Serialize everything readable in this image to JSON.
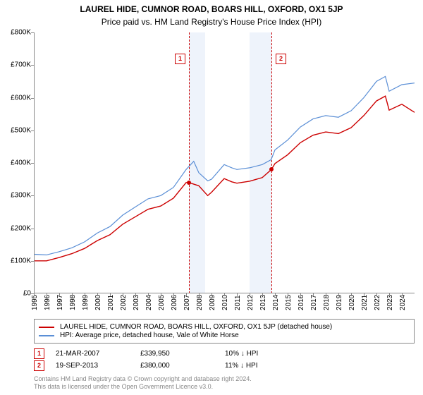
{
  "chart": {
    "type": "line",
    "title": "LAUREL HIDE, CUMNOR ROAD, BOARS HILL, OXFORD, OX1 5JP",
    "subtitle": "Price paid vs. HM Land Registry's House Price Index (HPI)",
    "background_color": "#ffffff",
    "band_color": "#eef3fb",
    "axis_color": "#888888",
    "tick_fontsize": 10,
    "title_fontsize": 12,
    "x": {
      "min": 1995,
      "max": 2025,
      "ticks": [
        1995,
        1996,
        1997,
        1998,
        1999,
        2000,
        2001,
        2002,
        2003,
        2004,
        2005,
        2006,
        2007,
        2008,
        2009,
        2010,
        2011,
        2012,
        2013,
        2014,
        2015,
        2016,
        2017,
        2018,
        2019,
        2020,
        2021,
        2022,
        2023,
        2024
      ]
    },
    "y": {
      "min": 0,
      "max": 800000,
      "ticks": [
        0,
        100000,
        200000,
        300000,
        400000,
        500000,
        600000,
        700000,
        800000
      ],
      "tick_labels": [
        "£0",
        "£100K",
        "£200K",
        "£300K",
        "£400K",
        "£500K",
        "£600K",
        "£700K",
        "£800K"
      ]
    },
    "series": [
      {
        "id": "hpi",
        "label": "HPI: Average price, detached house, Vale of White Horse",
        "color": "#5b8fd6",
        "width": 1.2,
        "points": [
          [
            1995,
            120000
          ],
          [
            1996,
            118000
          ],
          [
            1997,
            128000
          ],
          [
            1998,
            140000
          ],
          [
            1999,
            158000
          ],
          [
            2000,
            185000
          ],
          [
            2001,
            205000
          ],
          [
            2002,
            240000
          ],
          [
            2003,
            265000
          ],
          [
            2004,
            290000
          ],
          [
            2005,
            300000
          ],
          [
            2006,
            325000
          ],
          [
            2007,
            380000
          ],
          [
            2007.6,
            405000
          ],
          [
            2008,
            370000
          ],
          [
            2008.7,
            345000
          ],
          [
            2009,
            350000
          ],
          [
            2010,
            395000
          ],
          [
            2010.6,
            385000
          ],
          [
            2011,
            380000
          ],
          [
            2012,
            385000
          ],
          [
            2013,
            395000
          ],
          [
            2013.7,
            410000
          ],
          [
            2014,
            440000
          ],
          [
            2015,
            470000
          ],
          [
            2016,
            510000
          ],
          [
            2017,
            535000
          ],
          [
            2018,
            545000
          ],
          [
            2019,
            540000
          ],
          [
            2020,
            560000
          ],
          [
            2021,
            600000
          ],
          [
            2022,
            650000
          ],
          [
            2022.7,
            665000
          ],
          [
            2023,
            620000
          ],
          [
            2024,
            640000
          ],
          [
            2025,
            645000
          ]
        ]
      },
      {
        "id": "price",
        "label": "LAUREL HIDE, CUMNOR ROAD, BOARS HILL, OXFORD, OX1 5JP (detached house)",
        "color": "#cc0000",
        "width": 1.4,
        "points": [
          [
            1995,
            100000
          ],
          [
            1996,
            100000
          ],
          [
            1997,
            110000
          ],
          [
            1998,
            122000
          ],
          [
            1999,
            138000
          ],
          [
            2000,
            162000
          ],
          [
            2001,
            180000
          ],
          [
            2002,
            212000
          ],
          [
            2003,
            235000
          ],
          [
            2004,
            258000
          ],
          [
            2005,
            268000
          ],
          [
            2006,
            292000
          ],
          [
            2007,
            340000
          ],
          [
            2007.22,
            339950
          ],
          [
            2008,
            330000
          ],
          [
            2008.7,
            300000
          ],
          [
            2009,
            310000
          ],
          [
            2010,
            352000
          ],
          [
            2010.6,
            342000
          ],
          [
            2011,
            338000
          ],
          [
            2012,
            344000
          ],
          [
            2013,
            355000
          ],
          [
            2013.72,
            380000
          ],
          [
            2014,
            398000
          ],
          [
            2015,
            425000
          ],
          [
            2016,
            462000
          ],
          [
            2017,
            485000
          ],
          [
            2018,
            495000
          ],
          [
            2019,
            490000
          ],
          [
            2020,
            508000
          ],
          [
            2021,
            545000
          ],
          [
            2022,
            590000
          ],
          [
            2022.7,
            605000
          ],
          [
            2023,
            562000
          ],
          [
            2024,
            580000
          ],
          [
            2025,
            555000
          ]
        ]
      }
    ],
    "bands": [
      {
        "from": 2007.22,
        "to": 2008.5
      },
      {
        "from": 2012.0,
        "to": 2013.72
      }
    ],
    "markers": [
      {
        "n": "1",
        "x": 2007.22,
        "y": 339950
      },
      {
        "n": "2",
        "x": 2013.72,
        "y": 380000
      }
    ]
  },
  "legend": {
    "items": [
      {
        "color": "#cc0000",
        "label_path": "chart.series.1.label"
      },
      {
        "color": "#5b8fd6",
        "label_path": "chart.series.0.label"
      }
    ]
  },
  "transactions": [
    {
      "n": "1",
      "date": "21-MAR-2007",
      "price": "£339,950",
      "delta": "10% ↓ HPI"
    },
    {
      "n": "2",
      "date": "19-SEP-2013",
      "price": "£380,000",
      "delta": "11% ↓ HPI"
    }
  ],
  "footer": {
    "line1": "Contains HM Land Registry data © Crown copyright and database right 2024.",
    "line2": "This data is licensed under the Open Government Licence v3.0."
  }
}
